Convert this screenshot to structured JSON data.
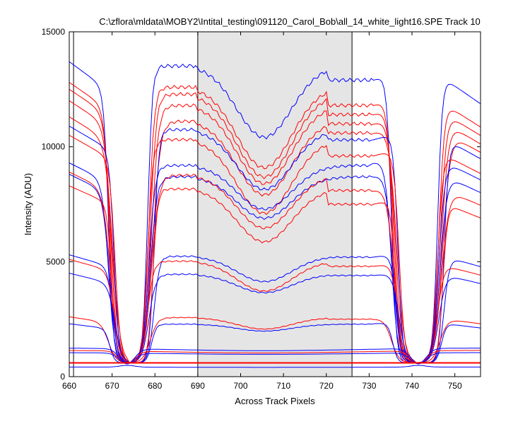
{
  "chart_data": {
    "type": "line",
    "title": "C:\\zflora\\mldata\\MOBY2\\Intital_testing\\091120_Carol_Bob\\all_14_white_light16.SPE   Track 10",
    "xlabel": "Across Track Pixels",
    "ylabel": "Intensity (ADU)",
    "xlim": [
      660,
      756
    ],
    "ylim": [
      0,
      15000
    ],
    "xticks": [
      "660",
      "670",
      "680",
      "690",
      "700",
      "710",
      "720",
      "730",
      "740",
      "750"
    ],
    "yticks": [
      "0",
      "5000",
      "10000",
      "15000"
    ],
    "shaded_region": [
      690,
      726
    ],
    "vertical_markers": [
      661,
      690,
      726
    ],
    "threshold_line": {
      "y": 600,
      "color": "#ff0000"
    },
    "colors": {
      "blue": "#0000ff",
      "red": "#ff0000",
      "shade": "#e5e5e5"
    },
    "series": [
      {
        "color": "#0000ff",
        "edge": 13700,
        "center": 10600,
        "right": 12900
      },
      {
        "color": "#ff0000",
        "edge": 12800,
        "center": 9300,
        "right": 11800
      },
      {
        "color": "#ff0000",
        "edge": 12500,
        "center": 8900,
        "right": 11400
      },
      {
        "color": "#ff0000",
        "edge": 12000,
        "center": 8600,
        "right": 11000
      },
      {
        "color": "#ff0000",
        "edge": 11300,
        "center": 8100,
        "right": 10600
      },
      {
        "color": "#0000ff",
        "edge": 10900,
        "center": 8300,
        "right": 10300
      },
      {
        "color": "#ff0000",
        "edge": 10500,
        "center": 7300,
        "right": 9600
      },
      {
        "color": "#0000ff",
        "edge": 9300,
        "center": 7400,
        "right": 9300
      },
      {
        "color": "#0000ff",
        "edge": 8800,
        "center": 7000,
        "right": 8700
      },
      {
        "color": "#ff0000",
        "edge": 8900,
        "center": 6600,
        "right": 8100
      },
      {
        "color": "#ff0000",
        "edge": 8300,
        "center": 6000,
        "right": 7500
      },
      {
        "color": "#0000ff",
        "edge": 5300,
        "center": 4200,
        "right": 5200
      },
      {
        "color": "#ff0000",
        "edge": 5100,
        "center": 3800,
        "right": 4800
      },
      {
        "color": "#0000ff",
        "edge": 4500,
        "center": 3700,
        "right": 4400
      },
      {
        "color": "#ff0000",
        "edge": 2600,
        "center": 2100,
        "right": 2500
      },
      {
        "color": "#0000ff",
        "edge": 2300,
        "center": 2000,
        "right": 2300
      },
      {
        "color": "#0000ff",
        "edge": 1250,
        "center": 1100,
        "right": 1250
      },
      {
        "color": "#ff0000",
        "edge": 1150,
        "center": 1000,
        "right": 1150
      },
      {
        "color": "#0000ff",
        "edge": 1050,
        "center": 950,
        "right": 1050
      },
      {
        "color": "#0000ff",
        "edge": 420,
        "center": 400,
        "right": 420
      }
    ]
  }
}
